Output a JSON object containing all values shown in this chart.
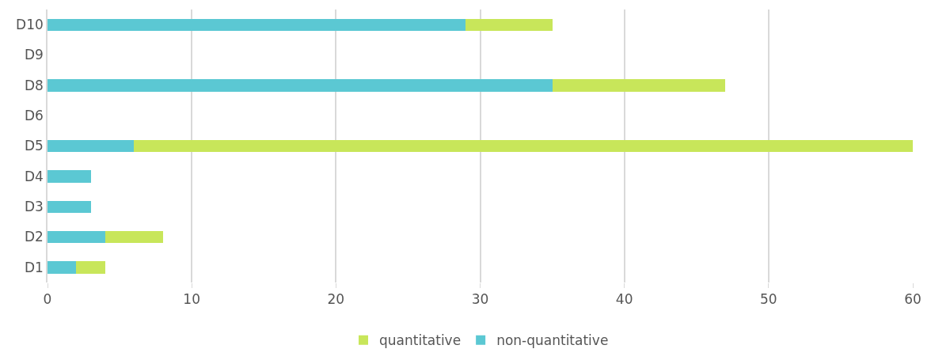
{
  "chart_data": {
    "type": "bar",
    "orientation": "horizontal",
    "stacked": true,
    "categories": [
      "D10",
      "D9",
      "D8",
      "D6",
      "D5",
      "D4",
      "D3",
      "D2",
      "D1"
    ],
    "series": [
      {
        "name": "non-quantitative",
        "color": "#5bc8d3",
        "values": [
          29,
          null,
          35,
          null,
          6,
          3,
          3,
          4,
          2
        ]
      },
      {
        "name": "quantitative",
        "color": "#c8e65a",
        "values": [
          6,
          null,
          12,
          null,
          54,
          null,
          null,
          4,
          2
        ]
      }
    ],
    "xlim": [
      0,
      60
    ],
    "xticks": [
      0,
      10,
      20,
      30,
      40,
      50,
      60
    ],
    "grid": "x",
    "legend": "bottom"
  }
}
